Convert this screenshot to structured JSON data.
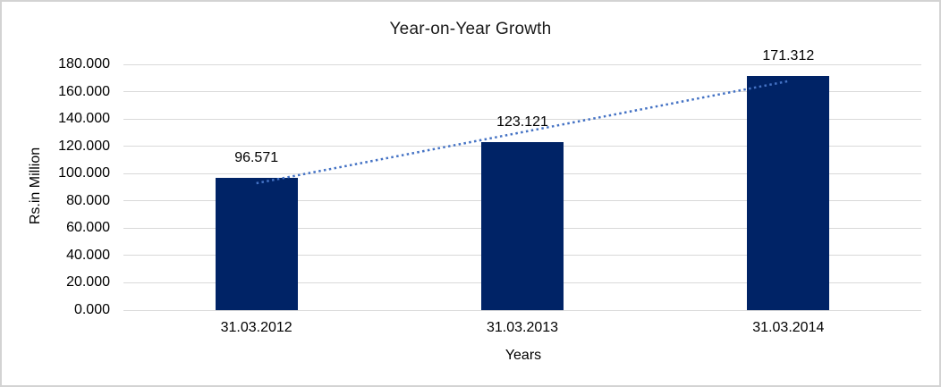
{
  "chart_data": {
    "type": "bar",
    "title": "Year-on-Year Growth",
    "xlabel": "Years",
    "ylabel": "Rs.in Million",
    "categories": [
      "31.03.2012",
      "31.03.2013",
      "31.03.2014"
    ],
    "values": [
      96.571,
      123.121,
      171.312
    ],
    "value_labels": [
      "96.571",
      "123.121",
      "171.312"
    ],
    "ylim": [
      0,
      180
    ],
    "ytick_step": 20,
    "ytick_labels": [
      "0.000",
      "20.000",
      "40.000",
      "60.000",
      "80.000",
      "100.000",
      "120.000",
      "140.000",
      "160.000",
      "180.000"
    ],
    "grid": true,
    "legend": "none",
    "trendline": {
      "type": "linear",
      "style": "dotted",
      "fitted_endpoint_values": [
        92.964,
        167.705
      ]
    },
    "colors": {
      "bar": "#002366",
      "trendline": "#4472c4",
      "gridline": "#d9d9d9",
      "text": "#000000",
      "frame_border": "#d3d3d3"
    }
  }
}
